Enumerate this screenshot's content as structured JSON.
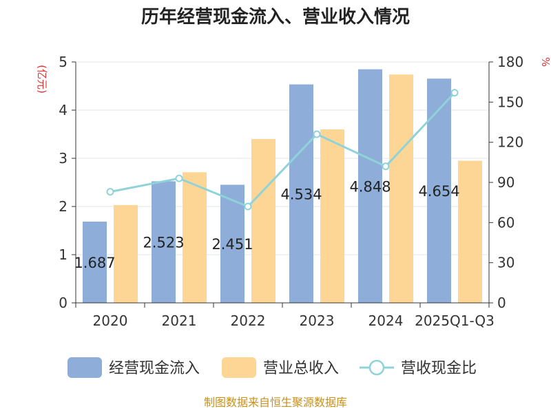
{
  "chart_data": {
    "type": "bar",
    "title": "历年经营现金流入、营业收入情况",
    "categories": [
      "2020",
      "2021",
      "2022",
      "2023",
      "2024",
      "2025Q1-Q3"
    ],
    "series": [
      {
        "name": "经营现金流入",
        "type": "bar",
        "axis": "left",
        "color": "#8eadd8",
        "values": [
          1.687,
          2.523,
          2.451,
          4.534,
          4.848,
          4.654
        ],
        "labels": [
          "1.687",
          "2.523",
          "2.451",
          "4.534",
          "4.848",
          "4.654"
        ]
      },
      {
        "name": "营业总收入",
        "type": "bar",
        "axis": "left",
        "color": "#fdd695",
        "values": [
          2.03,
          2.71,
          3.4,
          3.6,
          4.74,
          2.95
        ]
      },
      {
        "name": "营收现金比",
        "type": "line",
        "axis": "right",
        "color": "#8fd3d9",
        "values": [
          83,
          93,
          72,
          126,
          102,
          157
        ]
      }
    ],
    "y_left": {
      "unit": "(亿元)",
      "min": 0,
      "max": 5,
      "ticks": [
        "0",
        "1",
        "2",
        "3",
        "4",
        "5"
      ]
    },
    "y_right": {
      "unit": "%",
      "min": 0,
      "max": 180,
      "ticks": [
        "0",
        "30",
        "60",
        "90",
        "120",
        "150",
        "180"
      ]
    },
    "grid": true,
    "legend_position": "bottom"
  },
  "source": "制图数据来自恒生聚源数据库"
}
